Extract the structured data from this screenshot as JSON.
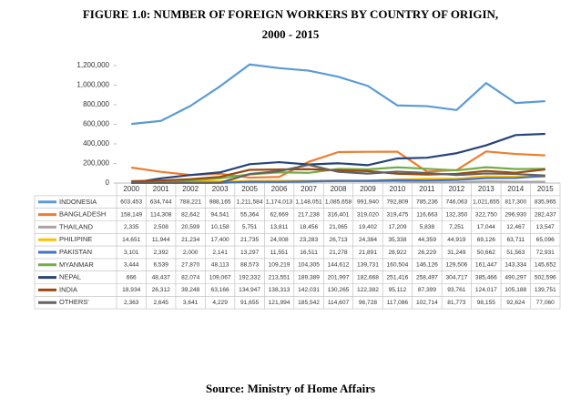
{
  "chart_data": {
    "type": "line",
    "title": [
      "FIGURE 1.0: NUMBER OF FOREIGN WORKERS BY COUNTRY OF ORIGIN,",
      "2000 - 2015"
    ],
    "categories": [
      "2000",
      "2001",
      "2002",
      "2003",
      "2005",
      "2006",
      "2007",
      "2008",
      "2009",
      "2010",
      "2011",
      "2012",
      "2013",
      "2014",
      "2015"
    ],
    "ylim": [
      0,
      1200000
    ],
    "yticks": [
      {
        "value": 0,
        "label": "0"
      },
      {
        "value": 200000,
        "label": "200,000"
      },
      {
        "value": 400000,
        "label": "400,000"
      },
      {
        "value": 600000,
        "label": "600,000"
      },
      {
        "value": 800000,
        "label": "800,000"
      },
      {
        "value": 1000000,
        "label": "1,000,000"
      },
      {
        "value": 1200000,
        "label": "1,200,000"
      }
    ],
    "grid": false,
    "series": [
      {
        "name": "INDONESIA",
        "color": "#5b9bd5",
        "values": [
          603453,
          634744,
          788221,
          988165,
          1211584,
          1174013,
          1148051,
          1085658,
          991940,
          792809,
          785236,
          746063,
          1021655,
          817300,
          835965
        ],
        "value_labels": [
          "603,453",
          "634,744",
          "788,221",
          "988,165",
          "1,211,584",
          "1,174,013",
          "1,148,051",
          "1,085,658",
          "991,940",
          "792,809",
          "785,236",
          "746,063",
          "1,021,655",
          "817,300",
          "835,965"
        ]
      },
      {
        "name": "BANGLADESH",
        "color": "#ed7d31",
        "values": [
          158149,
          114308,
          82642,
          94541,
          55364,
          62669,
          217238,
          316401,
          319020,
          319475,
          116663,
          132350,
          322750,
          296930,
          282437
        ],
        "value_labels": [
          "158,149",
          "114,308",
          "82,642",
          "94,541",
          "55,364",
          "62,669",
          "217,238",
          "316,401",
          "319,020",
          "319,475",
          "116,663",
          "132,350",
          "322,750",
          "296,930",
          "282,437"
        ]
      },
      {
        "name": "THAILAND",
        "color": "#a5a5a5",
        "values": [
          2335,
          2508,
          20599,
          10158,
          5751,
          13811,
          18456,
          21065,
          19402,
          17209,
          5838,
          7251,
          17044,
          12467,
          13547
        ],
        "value_labels": [
          "2,335",
          "2,508",
          "20,599",
          "10,158",
          "5,751",
          "13,811",
          "18,456",
          "21,065",
          "19,402",
          "17,209",
          "5,838",
          "7,251",
          "17,044",
          "12,467",
          "13,547"
        ]
      },
      {
        "name": "PHILIPINE",
        "color": "#ffc000",
        "values": [
          14651,
          11944,
          21234,
          17400,
          21735,
          24008,
          23283,
          26713,
          24384,
          35338,
          44359,
          44919,
          69126,
          63711,
          65096
        ],
        "value_labels": [
          "14,651",
          "11,944",
          "21,234",
          "17,400",
          "21,735",
          "24,008",
          "23,283",
          "26,713",
          "24,384",
          "35,338",
          "44,359",
          "44,919",
          "69,126",
          "63,711",
          "65,096"
        ]
      },
      {
        "name": "PAKISTAN",
        "color": "#4472c4",
        "values": [
          3101,
          2392,
          2000,
          2141,
          13297,
          11551,
          16511,
          21278,
          21891,
          28922,
          26229,
          31249,
          50662,
          51563,
          72931
        ],
        "value_labels": [
          "3,101",
          "2,392",
          "2,000",
          "2,141",
          "13,297",
          "11,551",
          "16,511",
          "21,278",
          "21,891",
          "28,922",
          "26,229",
          "31,249",
          "50,662",
          "51,563",
          "72,931"
        ]
      },
      {
        "name": "MYANMAR",
        "color": "#70ad47",
        "values": [
          3444,
          6539,
          27870,
          48113,
          88573,
          109219,
          104305,
          144612,
          139731,
          160504,
          146126,
          129506,
          161447,
          143334,
          145652
        ],
        "value_labels": [
          "3,444",
          "6,539",
          "27,870",
          "48,113",
          "88,573",
          "109,219",
          "104,305",
          "144,612",
          "139,731",
          "160,504",
          "146,126",
          "129,506",
          "161,447",
          "143,334",
          "145,652"
        ]
      },
      {
        "name": "NEPAL",
        "color": "#264478",
        "values": [
          666,
          48437,
          82074,
          109067,
          192332,
          213551,
          189389,
          201997,
          182668,
          251416,
          258497,
          304717,
          385466,
          490297,
          502596
        ],
        "value_labels": [
          "666",
          "48,437",
          "82,074",
          "109,067",
          "192,332",
          "213,551",
          "189,389",
          "201,997",
          "182,668",
          "251,416",
          "258,497",
          "304,717",
          "385,466",
          "490,297",
          "502,596"
        ]
      },
      {
        "name": "INDIA",
        "color": "#9e480e",
        "values": [
          18934,
          26312,
          39248,
          63166,
          134947,
          138313,
          142031,
          130265,
          122382,
          95112,
          87399,
          93761,
          124017,
          105188,
          139751
        ],
        "value_labels": [
          "18,934",
          "26,312",
          "39,248",
          "63,166",
          "134,947",
          "138,313",
          "142,031",
          "130,265",
          "122,382",
          "95,112",
          "87,399",
          "93,761",
          "124,017",
          "105,188",
          "139,751"
        ]
      },
      {
        "name": "OTHERS'",
        "color": "#636363",
        "values": [
          2363,
          2645,
          3641,
          4229,
          91655,
          121994,
          185542,
          114607,
          96728,
          117086,
          102714,
          81773,
          98155,
          92624,
          77060
        ],
        "value_labels": [
          "2,363",
          "2,645",
          "3,641",
          "4,229",
          "91,655",
          "121,994",
          "185,542",
          "114,607",
          "96,728",
          "117,086",
          "102,714",
          "81,773",
          "98,155",
          "92,624",
          "77,060"
        ]
      }
    ],
    "source": "Source: Ministry of Home Affairs"
  }
}
